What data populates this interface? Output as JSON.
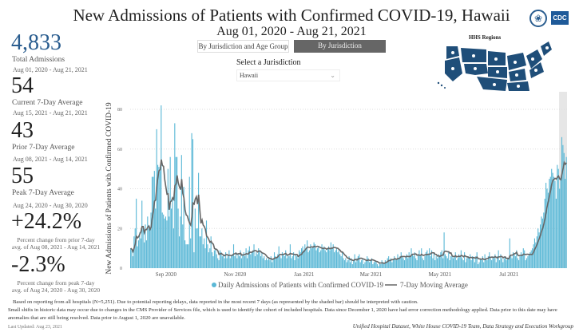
{
  "header": {
    "title": "New Admissions of Patients with Confirmed COVID-19, Hawaii",
    "subtitle": "Aug 01, 2020 - Aug 21, 2021",
    "logo_text": "CDC"
  },
  "toggles": [
    {
      "label": "By Jurisdiction and Age Group",
      "active": false
    },
    {
      "label": "By Jurisdiction",
      "active": true
    }
  ],
  "jurisdiction": {
    "label": "Select a Jurisdiction",
    "value": "Hawaii"
  },
  "map": {
    "title": "HHS Regions",
    "color": "#1f4e79"
  },
  "kpis": {
    "total": {
      "value": "4,833",
      "label": "Total Admissions",
      "range": "Aug 01, 2020 - Aug 21, 2021",
      "color": "#2a5d8f"
    },
    "current": {
      "value": "54",
      "label": "Current 7-Day Average",
      "range": "Aug 15, 2021 - Aug 21, 2021"
    },
    "prior": {
      "value": "43",
      "label": "Prior 7-Day Average",
      "range": "Aug 08, 2021 - Aug 14, 2021"
    },
    "peak": {
      "value": "55",
      "label": "Peak 7-Day Average",
      "range": "Aug 24, 2020 - Aug 30, 2020"
    },
    "change_prior": {
      "value": "+24.2%",
      "note1": "Percent change from prior 7-day",
      "note2": "avg. of Aug 08, 2021 - Aug 14, 2021"
    },
    "change_peak": {
      "value": "-2.3%",
      "note1": "Percent change from peak 7-day",
      "note2": "avg. of Aug 24, 2020 - Aug 30, 2020"
    }
  },
  "chart_data": {
    "type": "bar",
    "ylabel": "New Admissions of Patients with Confirmed COVID-19",
    "x_start": "2020-08-01",
    "x_end": "2021-08-21",
    "ylim": [
      0,
      80
    ],
    "yticks": [
      0,
      20,
      40,
      60,
      80
    ],
    "xticks": [
      {
        "label": "Sep 2020",
        "date": "2020-09-01"
      },
      {
        "label": "Nov 2020",
        "date": "2020-11-01"
      },
      {
        "label": "Jan 2021",
        "date": "2021-01-01"
      },
      {
        "label": "Mar 2021",
        "date": "2021-03-01"
      },
      {
        "label": "May 2021",
        "date": "2021-05-01"
      },
      {
        "label": "Jul 2021",
        "date": "2021-07-01"
      }
    ],
    "grid": true,
    "legend_position": "bottom",
    "shaded_range": [
      "2021-08-15",
      "2021-08-21"
    ],
    "series": [
      {
        "name": "Daily Admissions of Patients with Confirmed COVID-19",
        "type": "bar",
        "color": "#5bb8d6"
      },
      {
        "name": "7-Day Moving Average",
        "type": "line",
        "color": "#666666"
      }
    ],
    "daily_values": [
      10,
      9,
      6,
      16,
      20,
      35,
      11,
      14,
      18,
      15,
      34,
      20,
      13,
      22,
      14,
      26,
      20,
      21,
      28,
      46,
      46,
      49,
      30,
      70,
      52,
      51,
      49,
      82,
      28,
      27,
      25,
      26,
      24,
      50,
      26,
      56,
      30,
      36,
      20,
      73,
      56,
      56,
      30,
      16,
      26,
      57,
      22,
      41,
      14,
      12,
      12,
      12,
      46,
      15,
      68,
      65,
      8,
      30,
      20,
      20,
      48,
      16,
      16,
      20,
      12,
      15,
      10,
      24,
      12,
      8,
      10,
      16,
      8,
      6,
      9,
      10,
      7,
      5,
      4,
      9,
      8,
      6,
      7,
      5,
      8,
      5,
      6,
      9,
      5,
      6,
      7,
      12,
      6,
      8,
      5,
      7,
      6,
      9,
      5,
      7,
      8,
      6,
      10,
      5,
      9,
      11,
      7,
      8,
      9,
      12,
      6,
      8,
      7,
      10,
      9,
      6,
      8,
      5,
      6,
      4,
      5,
      4,
      5,
      4,
      6,
      3,
      5,
      8,
      6,
      5,
      7,
      11,
      6,
      5,
      8,
      7,
      6,
      9,
      5,
      7,
      6,
      12,
      5,
      6,
      8,
      4,
      7,
      6,
      5,
      9,
      8,
      10,
      11,
      9,
      12,
      10,
      14,
      8,
      9,
      12,
      10,
      11,
      13,
      12,
      9,
      10,
      11,
      8,
      9,
      12,
      10,
      11,
      9,
      8,
      10,
      11,
      9,
      13,
      10,
      12,
      8,
      9,
      10,
      8,
      9,
      7,
      6,
      8,
      5,
      4,
      5,
      3,
      4,
      6,
      3,
      5,
      2,
      4,
      7,
      3,
      5,
      6,
      7,
      3,
      4,
      5,
      2,
      3,
      4,
      6,
      5,
      3,
      4,
      5,
      2,
      3,
      4,
      3,
      2,
      1,
      3,
      2,
      4,
      3,
      2,
      4,
      3,
      5,
      6,
      4,
      5,
      3,
      4,
      6,
      5,
      4,
      7,
      5,
      6,
      8,
      6,
      5,
      4,
      6,
      7,
      5,
      8,
      6,
      10,
      7,
      6,
      8,
      5,
      4,
      7,
      9,
      6,
      10,
      5,
      4,
      6,
      8,
      9,
      7,
      10,
      6,
      9,
      5,
      8,
      4,
      6,
      5,
      7,
      6,
      8,
      9,
      5,
      18,
      7,
      6,
      5,
      8,
      4,
      6,
      7,
      5,
      6,
      8,
      4,
      5,
      7,
      6,
      9,
      5,
      4,
      8,
      3,
      5,
      6,
      5,
      7,
      4,
      6,
      5,
      3,
      6,
      8,
      2,
      3,
      5,
      4,
      6,
      3,
      7,
      5,
      4,
      6,
      8,
      5,
      4,
      6,
      5,
      7,
      3,
      6,
      9,
      4,
      7,
      5,
      3,
      5,
      6,
      4,
      5,
      5,
      15,
      6,
      5,
      8,
      7,
      6,
      9,
      5,
      4,
      6,
      8,
      7,
      10,
      9,
      4,
      5,
      6,
      7,
      8,
      9,
      10,
      12,
      15,
      13,
      16,
      20,
      18,
      22,
      26,
      25,
      28,
      35,
      43,
      40,
      38,
      45,
      46,
      50,
      48,
      46,
      44,
      35,
      52,
      50,
      40,
      45,
      66,
      62,
      58,
      45,
      56
    ]
  },
  "footer": {
    "note1": "Based on reporting from all hospitals (N=5,251). Due to potential reporting delays, data reported in the most recent 7 days (as represented by the shaded bar) should be interpreted with caution.",
    "note2": "Small shifts in historic data may occur due to changes in the CMS Provider of Services file, which is used to identify the cohort of included hospitals. Data since December 1, 2020 have had error correction methodology applied. Data prior to this date may have",
    "note3": "anomalies that are still being resolved. Data prior to August 1, 2020 are unavailable.",
    "updated": "Last Updated: Aug 23, 2021",
    "source": "Unified Hospital Dataset, White House COVID-19 Team, Data Strategy and Execution Workgroup"
  }
}
